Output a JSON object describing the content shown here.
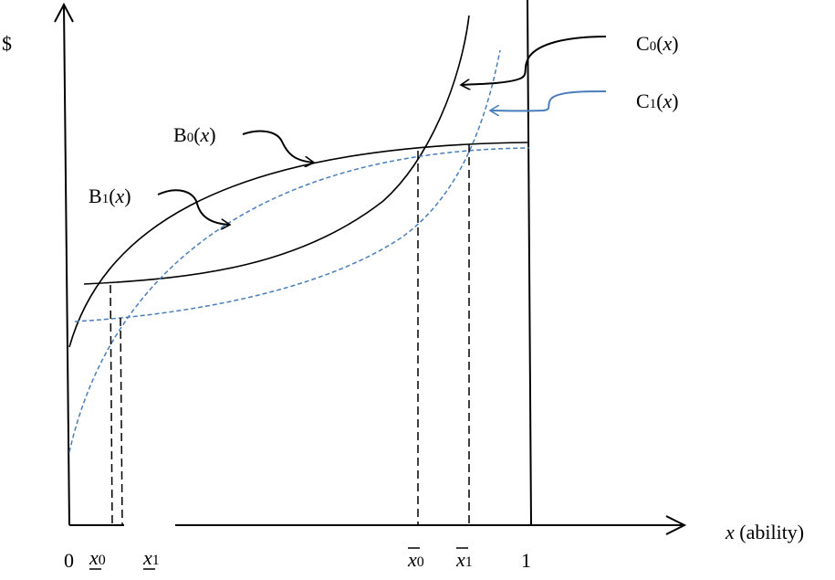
{
  "y_axis_label": "$",
  "x_axis": {
    "variable": "x",
    "suffix": " (ability)"
  },
  "origin_label": "0",
  "one_label": "1",
  "ticks": {
    "x0_lower": {
      "var": "x",
      "sub": "0"
    },
    "x1_lower": {
      "var": "x",
      "sub": "1"
    },
    "x0_upper": {
      "var": "x",
      "sub": "0"
    },
    "x1_upper": {
      "var": "x",
      "sub": "1"
    }
  },
  "curves": {
    "B0": {
      "base": "B",
      "sub": "0",
      "arg": "x"
    },
    "B1": {
      "base": "B",
      "sub": "1",
      "arg": "x"
    },
    "C0": {
      "base": "C",
      "sub": "0",
      "arg": "x"
    },
    "C1": {
      "base": "C",
      "sub": "1",
      "arg": "x"
    }
  },
  "colors": {
    "black": "#000000",
    "blue": "#4a7ebb"
  }
}
